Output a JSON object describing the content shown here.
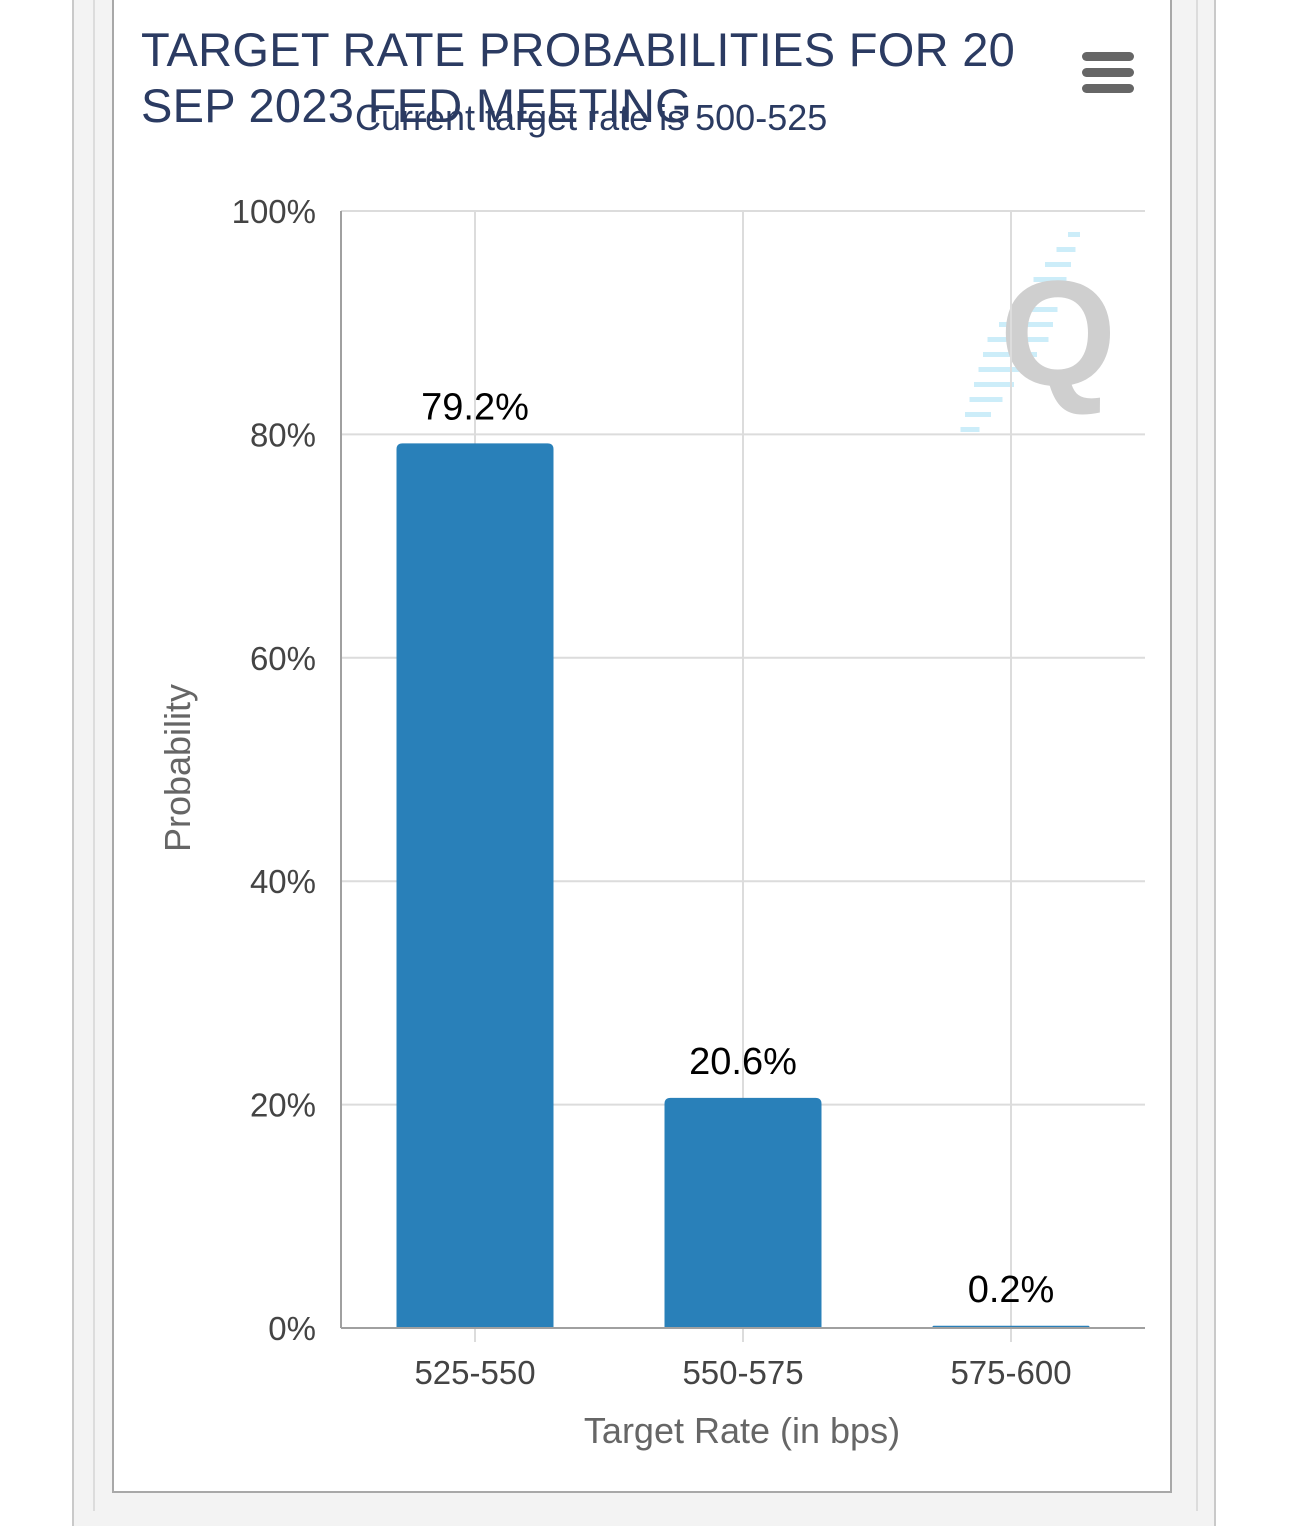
{
  "header": {
    "title": "TARGET RATE PROBABILITIES FOR 20 SEP 2023 FED MEETING",
    "subtitle": "Current target rate is 500-525"
  },
  "toolbar": {
    "menu_icon": "hamburger-menu-icon"
  },
  "watermark": {
    "letter": "Q",
    "icon": "cme-fedwatch-logo-icon"
  },
  "colors": {
    "bar": "#2980b9",
    "title": "#2b3b62",
    "grid": "#dcdcdc",
    "axis": "#a0a0a0"
  },
  "chart_data": {
    "type": "bar",
    "title": "TARGET RATE PROBABILITIES FOR 20 SEP 2023 FED MEETING",
    "subtitle": "Current target rate is 500-525",
    "categories": [
      "525-550",
      "550-575",
      "575-600"
    ],
    "values": [
      79.2,
      20.6,
      0.2
    ],
    "data_labels": [
      "79.2%",
      "20.6%",
      "0.2%"
    ],
    "xlabel": "Target Rate (in bps)",
    "ylabel": "Probability",
    "ylim": [
      0,
      100
    ],
    "yticks": [
      0,
      20,
      40,
      60,
      80,
      100
    ],
    "ytick_labels": [
      "0%",
      "20%",
      "40%",
      "60%",
      "80%",
      "100%"
    ],
    "grid": true,
    "legend": "none"
  }
}
